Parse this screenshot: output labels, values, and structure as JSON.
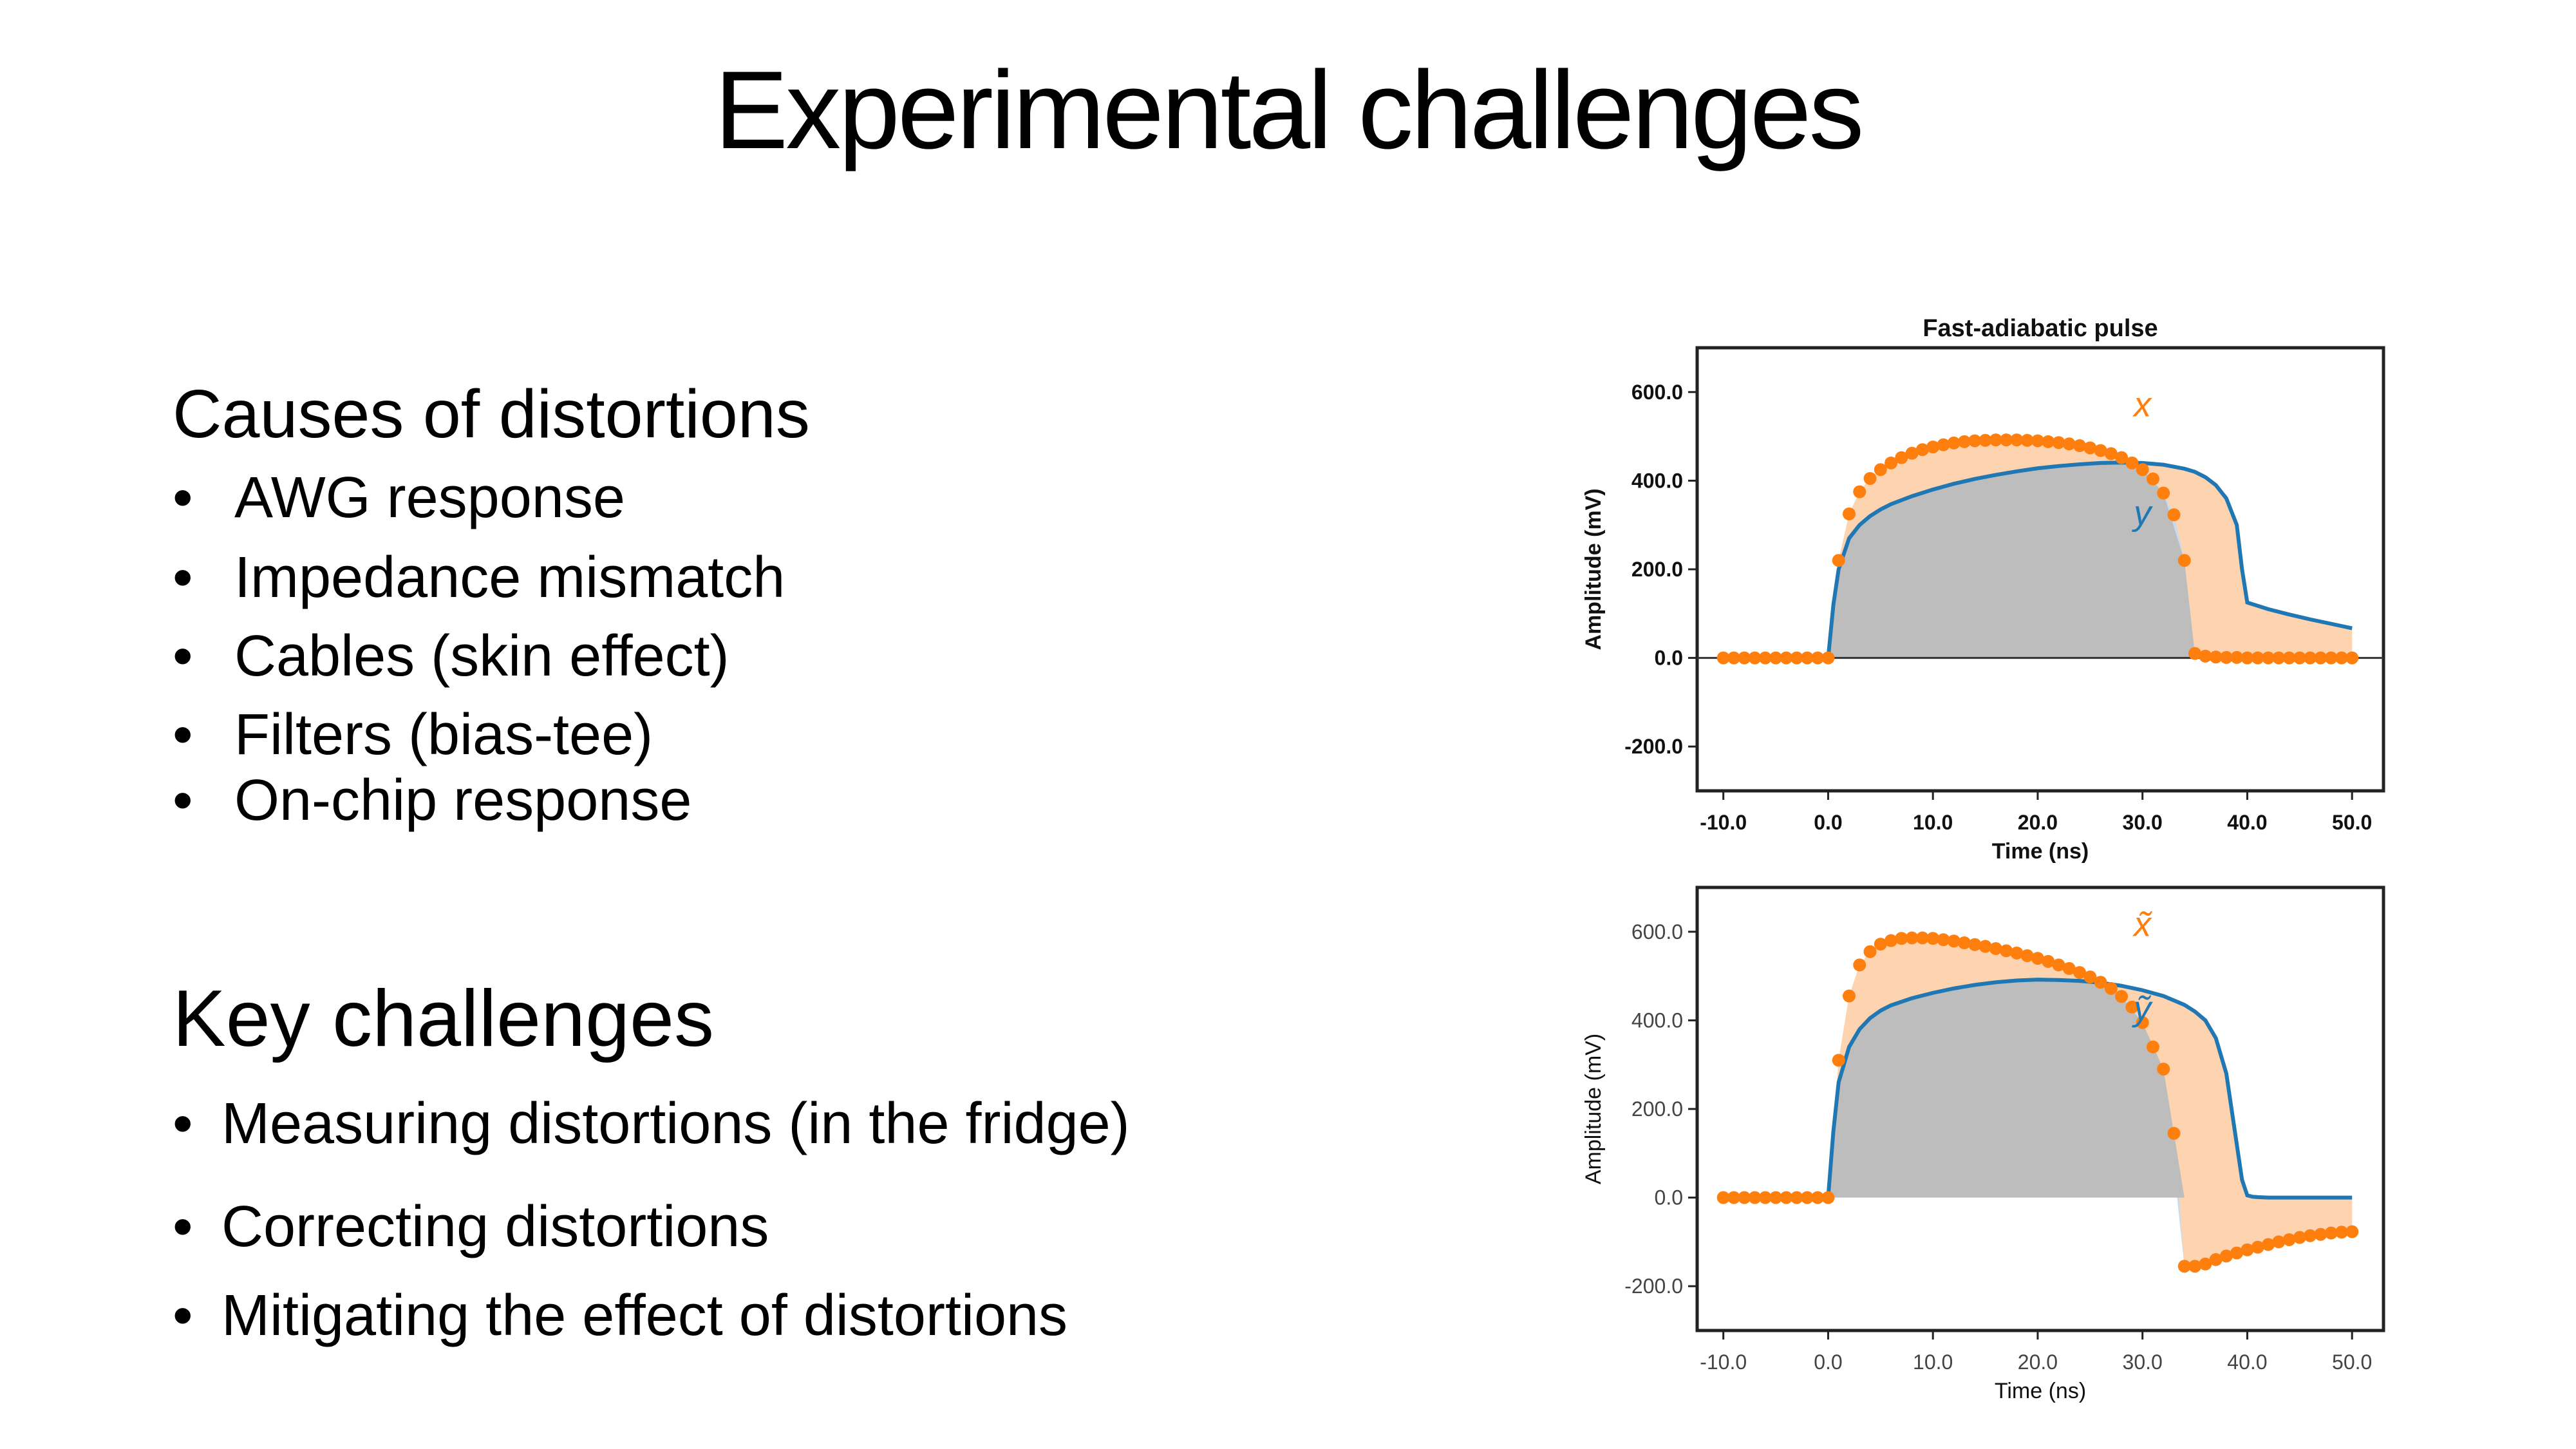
{
  "slide": {
    "title": "Experimental challenges",
    "causes": {
      "heading": "Causes of distortions",
      "bullet_symbol": "•",
      "items": [
        "AWG response",
        "Impedance mismatch",
        "Cables (skin effect)",
        "Filters (bias-tee)",
        "On-chip response"
      ]
    },
    "challenges": {
      "heading": "Key challenges",
      "bullet_symbol": "•",
      "items": [
        "Measuring distortions (in the fridge)",
        "Correcting distortions",
        "Mitigating the effect of distortions"
      ]
    }
  },
  "colors": {
    "orange": "#ff7f0e",
    "blue": "#1f77b4",
    "gray_fill": "#bdbdbd",
    "orange_fill": "#fdd3b0",
    "blue_fill": "#c5dcef"
  },
  "chart_data": [
    {
      "type": "line",
      "title": "Fast-adiabatic pulse",
      "xlabel": "Time (ns)",
      "ylabel": "Amplitude (mV)",
      "xlim": [
        -12.5,
        53
      ],
      "ylim": [
        -300,
        700
      ],
      "xticks": [
        "-10.0",
        "0.0",
        "10.0",
        "20.0",
        "30.0",
        "40.0",
        "50.0"
      ],
      "yticks": [
        "-200.0",
        "0.0",
        "200.0",
        "400.0",
        "600.0"
      ],
      "zero_line": true,
      "series": [
        {
          "name": "x",
          "style": "markers",
          "x": [
            -10,
            -9,
            -8,
            -7,
            -6,
            -5,
            -4,
            -3,
            -2,
            -1,
            0,
            1,
            2,
            3,
            4,
            5,
            6,
            7,
            8,
            9,
            10,
            11,
            12,
            13,
            14,
            15,
            16,
            17,
            18,
            19,
            20,
            21,
            22,
            23,
            24,
            25,
            26,
            27,
            28,
            29,
            30,
            31,
            32,
            33,
            34,
            35,
            36,
            37,
            38,
            39,
            40,
            41,
            42,
            43,
            44,
            45,
            46,
            47,
            48,
            49,
            50
          ],
          "y": [
            0,
            0,
            0,
            0,
            0,
            0,
            0,
            0,
            0,
            0,
            0,
            220,
            325,
            375,
            405,
            425,
            440,
            452,
            462,
            470,
            476,
            481,
            485,
            488,
            490,
            491,
            492,
            492,
            492,
            491,
            490,
            488,
            486,
            483,
            479,
            474,
            468,
            461,
            452,
            440,
            425,
            404,
            372,
            323,
            220,
            10,
            4,
            2,
            1,
            1,
            0,
            0,
            0,
            0,
            0,
            0,
            0,
            0,
            0,
            0,
            0
          ]
        },
        {
          "name": "y",
          "style": "line",
          "x": [
            0,
            0.5,
            1,
            2,
            3,
            4,
            5,
            6,
            8,
            10,
            12,
            14,
            16,
            18,
            20,
            22,
            24,
            26,
            28,
            30,
            32,
            34,
            35,
            36,
            37,
            38,
            39,
            39.5,
            40,
            42,
            44,
            46,
            48,
            50
          ],
          "y": [
            0,
            120,
            200,
            270,
            300,
            320,
            335,
            347,
            365,
            380,
            393,
            404,
            413,
            421,
            428,
            433,
            437,
            440,
            441,
            440,
            436,
            427,
            420,
            408,
            390,
            360,
            300,
            200,
            125,
            110,
            98,
            87,
            77,
            67
          ]
        }
      ],
      "annotations": [
        {
          "text": "x",
          "at": [
            30,
            545
          ]
        },
        {
          "text": "y",
          "at": [
            30,
            300
          ]
        }
      ]
    },
    {
      "type": "line",
      "title": "",
      "xlabel": "Time (ns)",
      "ylabel": "Amplitude (mV)",
      "xlim": [
        -12.5,
        53
      ],
      "ylim": [
        -300,
        700
      ],
      "xticks": [
        "-10.0",
        "0.0",
        "10.0",
        "20.0",
        "30.0",
        "40.0",
        "50.0"
      ],
      "yticks": [
        "-200.0",
        "0.0",
        "200.0",
        "400.0",
        "600.0"
      ],
      "zero_line": false,
      "series": [
        {
          "name": "x̃",
          "style": "markers",
          "x": [
            -10,
            -9,
            -8,
            -7,
            -6,
            -5,
            -4,
            -3,
            -2,
            -1,
            0,
            1,
            2,
            3,
            4,
            5,
            6,
            7,
            8,
            9,
            10,
            11,
            12,
            13,
            14,
            15,
            16,
            17,
            18,
            19,
            20,
            21,
            22,
            23,
            24,
            25,
            26,
            27,
            28,
            29,
            30,
            31,
            32,
            33,
            34,
            35,
            36,
            37,
            38,
            39,
            40,
            41,
            42,
            43,
            44,
            45,
            46,
            47,
            48,
            49,
            50
          ],
          "y": [
            0,
            0,
            0,
            0,
            0,
            0,
            0,
            0,
            0,
            0,
            0,
            310,
            455,
            525,
            555,
            572,
            580,
            585,
            586,
            586,
            585,
            582,
            579,
            575,
            571,
            567,
            562,
            557,
            552,
            546,
            540,
            533,
            525,
            517,
            508,
            498,
            486,
            472,
            454,
            430,
            395,
            340,
            290,
            145,
            -155,
            -155,
            -150,
            -140,
            -132,
            -125,
            -118,
            -112,
            -106,
            -100,
            -95,
            -90,
            -86,
            -83,
            -80,
            -78,
            -77
          ]
        },
        {
          "name": "ỹ",
          "style": "line",
          "x": [
            0,
            0.5,
            1,
            2,
            3,
            4,
            5,
            6,
            8,
            10,
            12,
            14,
            16,
            18,
            20,
            22,
            24,
            26,
            28,
            30,
            32,
            34,
            35,
            36,
            37,
            38,
            38.5,
            39,
            39.5,
            40,
            40.5,
            41,
            42,
            44,
            46,
            48,
            50
          ],
          "y": [
            0,
            150,
            260,
            340,
            380,
            405,
            422,
            434,
            450,
            462,
            472,
            480,
            486,
            490,
            492,
            491,
            489,
            485,
            478,
            468,
            455,
            435,
            420,
            400,
            360,
            280,
            200,
            120,
            40,
            5,
            2,
            1,
            0,
            0,
            0,
            0,
            0
          ]
        }
      ],
      "annotations": [
        {
          "text": "x̃",
          "at": [
            30,
            590
          ]
        },
        {
          "text": "ỹ",
          "at": [
            30,
            400
          ]
        }
      ]
    }
  ]
}
